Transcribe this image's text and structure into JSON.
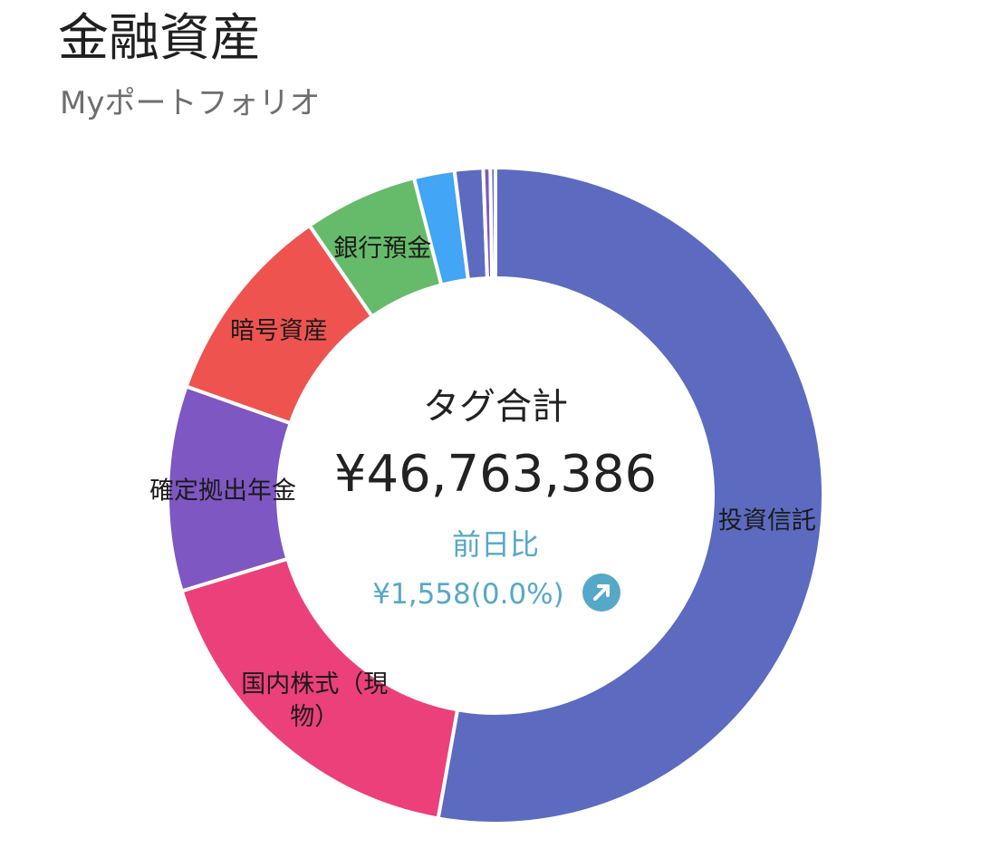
{
  "header": {
    "title": "金融資産",
    "subtitle": "Myポートフォリオ"
  },
  "center": {
    "label": "タグ合計",
    "total": "¥46,763,386",
    "change_label": "前日比",
    "change_value": "¥1,558(0.0%)",
    "change_icon": "arrow-up-right-icon",
    "accent_color": "#56a8c9"
  },
  "chart_data": {
    "type": "pie",
    "style": "donut",
    "start": "12 o'clock, clockwise",
    "series": [
      {
        "name": "投資信託",
        "value": 52.8,
        "color": "#5c6bc0"
      },
      {
        "name": "国内株式（現物）",
        "value": 17.5,
        "color": "#ec407a"
      },
      {
        "name": "確定拠出年金",
        "value": 10.1,
        "color": "#7e57c2"
      },
      {
        "name": "暗号資産",
        "value": 10.0,
        "color": "#ef5350"
      },
      {
        "name": "銀行預金",
        "value": 5.6,
        "color": "#66bb6a"
      },
      {
        "name": "",
        "value": 2.0,
        "color": "#42a5f5"
      },
      {
        "name": "",
        "value": 1.4,
        "color": "#5c6bc0"
      },
      {
        "name": "",
        "value": 0.35,
        "color": "#7e57c2"
      },
      {
        "name": "",
        "value": 0.25,
        "color": "#5c6bc0"
      }
    ],
    "slice_labels": [
      {
        "lines": [
          "投資信託"
        ]
      },
      {
        "lines": [
          "国内株式（現",
          "物）"
        ]
      },
      {
        "lines": [
          "確定拠出年金"
        ]
      },
      {
        "lines": [
          "暗号資産"
        ]
      },
      {
        "lines": [
          "銀行預金"
        ]
      },
      {
        "lines": []
      },
      {
        "lines": []
      },
      {
        "lines": []
      },
      {
        "lines": []
      }
    ]
  }
}
